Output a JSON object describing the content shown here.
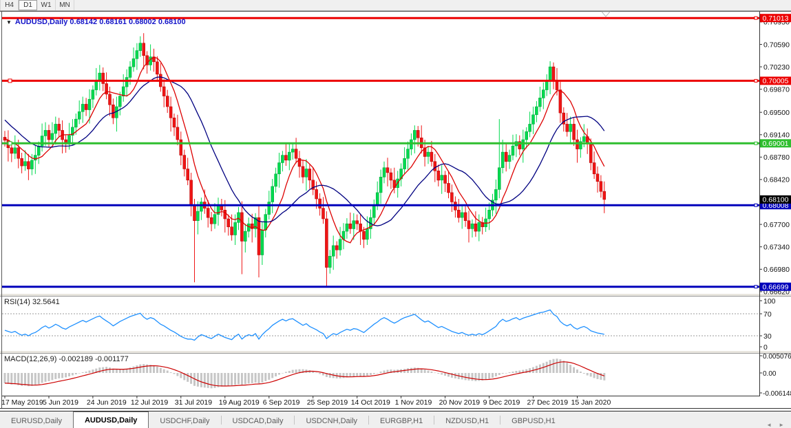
{
  "toolbar": {
    "timeframes": [
      {
        "label": "H4",
        "active": false
      },
      {
        "label": "D1",
        "active": true
      },
      {
        "label": "W1",
        "active": false
      },
      {
        "label": "MN",
        "active": false
      }
    ]
  },
  "icons": {
    "dropdown": "▼",
    "tab_prev": "◄",
    "tab_next": "►"
  },
  "chart": {
    "title_symbol": "AUDUSD,Daily",
    "ohlc_text": "0.68142 0.68161 0.68002 0.68100",
    "axis_ticks": [
      "0.70950",
      "0.70590",
      "0.70230",
      "0.69870",
      "0.69500",
      "0.69140",
      "0.68780",
      "0.68420",
      "0.67700",
      "0.67340",
      "0.66980",
      "0.66620"
    ],
    "hlines": [
      {
        "value": 0.71013,
        "label": "0.71013",
        "color": "#EC0000",
        "badge": "#EC0000",
        "handle": false
      },
      {
        "value": 0.70005,
        "label": "0.70005",
        "color": "#EC0000",
        "badge": "#EC0000",
        "handle": true
      },
      {
        "value": 0.69001,
        "label": "0.69001",
        "color": "#2FBE2F",
        "badge": "#2FBE2F",
        "handle": true
      },
      {
        "value": 0.68008,
        "label": "0.68008",
        "color": "#0000BB",
        "badge": "#0000BB",
        "handle": false
      },
      {
        "value": 0.66699,
        "label": "0.66699",
        "color": "#0000BB",
        "badge": "#0000BB",
        "handle": false
      }
    ],
    "current_price": {
      "value": 0.681,
      "label": "0.68100",
      "badge": "#000000"
    },
    "colors": {
      "bull": "#00D94F",
      "bull_edge": "#00A33A",
      "bear": "#EF1515",
      "bear_edge": "#B20000",
      "ma_fast": "#DD0000",
      "ma_slow": "#000080",
      "rsi": "#1E90FF",
      "macd_hist": "#C6C6C6",
      "macd_signal": "#CC0000"
    }
  },
  "chart_data": {
    "type": "candlestick",
    "title": "AUDUSD,Daily",
    "x_labels": [
      "17 May 2019",
      "5 Jun 2019",
      "24 Jun 2019",
      "12 Jul 2019",
      "31 Jul 2019",
      "19 Aug 2019",
      "6 Sep 2019",
      "25 Sep 2019",
      "14 Oct 2019",
      "1 Nov 2019",
      "20 Nov 2019",
      "9 Dec 2019",
      "27 Dec 2019",
      "15 Jan 2020"
    ],
    "bars_per_label": 13,
    "open_first": 0.691,
    "open_rule": "previous_close",
    "pre_closes": [
      0.7005,
      0.6998,
      0.699,
      0.6982,
      0.6975,
      0.6968,
      0.696,
      0.6952,
      0.6945,
      0.6938,
      0.6932,
      0.6926,
      0.6921,
      0.6916,
      0.6912,
      0.6909,
      0.6907,
      0.6906,
      0.6905,
      0.6905
    ],
    "closes": [
      0.6905,
      0.6893,
      0.6884,
      0.6893,
      0.6876,
      0.6864,
      0.6871,
      0.6859,
      0.6873,
      0.6881,
      0.6896,
      0.6912,
      0.6921,
      0.6906,
      0.6916,
      0.6931,
      0.6921,
      0.6906,
      0.6899,
      0.6913,
      0.6926,
      0.6939,
      0.6951,
      0.6963,
      0.6954,
      0.6971,
      0.6986,
      0.7001,
      0.7013,
      0.6996,
      0.6979,
      0.6962,
      0.6941,
      0.6959,
      0.6976,
      0.6991,
      0.7006,
      0.7023,
      0.7036,
      0.7049,
      0.7061,
      0.7041,
      0.7026,
      0.7039,
      0.7031,
      0.7011,
      0.6991,
      0.6976,
      0.6959,
      0.6941,
      0.6926,
      0.6906,
      0.6881,
      0.6859,
      0.6841,
      0.6801,
      0.6776,
      0.6791,
      0.6806,
      0.6796,
      0.6781,
      0.6771,
      0.6786,
      0.6801,
      0.6793,
      0.6779,
      0.6766,
      0.6753,
      0.6773,
      0.6789,
      0.6743,
      0.6759,
      0.6771,
      0.6763,
      0.6781,
      0.6721,
      0.6761,
      0.6786,
      0.6806,
      0.6831,
      0.6851,
      0.6869,
      0.6881,
      0.6873,
      0.6886,
      0.6891,
      0.6876,
      0.6863,
      0.6846,
      0.6859,
      0.6841,
      0.6826,
      0.6811,
      0.6796,
      0.6779,
      0.6701,
      0.6719,
      0.6736,
      0.6729,
      0.6746,
      0.6759,
      0.6771,
      0.6763,
      0.6776,
      0.6771,
      0.6759,
      0.6746,
      0.6763,
      0.6781,
      0.6801,
      0.6821,
      0.6846,
      0.6861,
      0.6853,
      0.6841,
      0.6829,
      0.6843,
      0.6859,
      0.6876,
      0.6891,
      0.6906,
      0.6921,
      0.6909,
      0.6893,
      0.6879,
      0.6886,
      0.6871,
      0.6856,
      0.6841,
      0.6849,
      0.6836,
      0.6821,
      0.6806,
      0.6793,
      0.6781,
      0.6789,
      0.6776,
      0.6763,
      0.6771,
      0.6759,
      0.6773,
      0.6766,
      0.6779,
      0.6793,
      0.6809,
      0.6826,
      0.6861,
      0.6886,
      0.6871,
      0.6881,
      0.6896,
      0.6903,
      0.6891,
      0.6906,
      0.6919,
      0.6931,
      0.6946,
      0.6959,
      0.6973,
      0.6986,
      0.7001,
      0.7023,
      0.7001,
      0.6986,
      0.6949,
      0.6931,
      0.6919,
      0.6931,
      0.6906,
      0.6891,
      0.6903,
      0.6911,
      0.6899,
      0.6869,
      0.6851,
      0.6839,
      0.6823,
      0.681
    ],
    "special_wicks": {
      "40": {
        "high": 0.7072
      },
      "56": {
        "low": 0.6677
      },
      "70": {
        "low": 0.669
      },
      "75": {
        "low": 0.6685
      },
      "95": {
        "low": 0.667
      },
      "121": {
        "high": 0.6929
      },
      "146": {
        "high": 0.6939
      },
      "161": {
        "high": 0.7032
      }
    },
    "ma_fast_period": 8,
    "ma_slow_period": 20,
    "rsi": {
      "label": "RSI(14) 32.5641",
      "levels": [
        70,
        30
      ],
      "axis": [
        "100",
        "70",
        "30",
        "0"
      ],
      "values": [
        40,
        38,
        36,
        38,
        34,
        31,
        33,
        30,
        34,
        36,
        40,
        45,
        48,
        44,
        47,
        51,
        48,
        44,
        42,
        46,
        49,
        52,
        55,
        58,
        55,
        58,
        61,
        64,
        66,
        61,
        57,
        53,
        48,
        52,
        56,
        59,
        62,
        65,
        67,
        69,
        71,
        64,
        60,
        63,
        61,
        56,
        51,
        48,
        44,
        40,
        37,
        33,
        29,
        26,
        24,
        24,
        22,
        28,
        32,
        30,
        27,
        25,
        29,
        33,
        30,
        27,
        25,
        23,
        29,
        33,
        24,
        29,
        32,
        30,
        34,
        24,
        32,
        38,
        43,
        49,
        53,
        57,
        60,
        57,
        60,
        61,
        57,
        53,
        49,
        52,
        47,
        44,
        41,
        37,
        34,
        25,
        30,
        34,
        32,
        36,
        39,
        42,
        40,
        43,
        42,
        39,
        36,
        41,
        46,
        51,
        55,
        60,
        63,
        60,
        56,
        53,
        56,
        60,
        63,
        65,
        67,
        69,
        64,
        59,
        55,
        57,
        53,
        49,
        45,
        47,
        44,
        41,
        38,
        36,
        34,
        36,
        33,
        31,
        33,
        31,
        34,
        32,
        35,
        39,
        43,
        47,
        55,
        60,
        56,
        58,
        61,
        63,
        59,
        62,
        64,
        66,
        68,
        70,
        72,
        73,
        75,
        77,
        69,
        65,
        56,
        51,
        48,
        51,
        45,
        42,
        45,
        47,
        44,
        39,
        37,
        35,
        34,
        32.6
      ]
    },
    "macd": {
      "label": "MACD(12,26,9) -0.002189 -0.001177",
      "axis": [
        "0.005076",
        "0.00",
        "-0.006148"
      ],
      "hist_scale": 0.0001,
      "hist": [
        -30,
        -32,
        -34,
        -33,
        -36,
        -38,
        -37,
        -39,
        -38,
        -36,
        -33,
        -29,
        -26,
        -24,
        -21,
        -18,
        -16,
        -15,
        -13,
        -10,
        -7,
        -4,
        -1,
        2,
        4,
        7,
        10,
        13,
        16,
        17,
        18,
        16,
        13,
        11,
        10,
        11,
        13,
        16,
        19,
        22,
        25,
        26,
        25,
        24,
        22,
        19,
        15,
        11,
        7,
        2,
        -3,
        -9,
        -15,
        -21,
        -26,
        -32,
        -38,
        -40,
        -42,
        -43,
        -44,
        -45,
        -44,
        -42,
        -40,
        -39,
        -38,
        -37,
        -35,
        -33,
        -35,
        -33,
        -31,
        -30,
        -28,
        -31,
        -28,
        -24,
        -20,
        -15,
        -10,
        -5,
        0,
        3,
        6,
        9,
        10,
        11,
        11,
        10,
        8,
        5,
        1,
        -3,
        -7,
        -12,
        -14,
        -15,
        -16,
        -16,
        -15,
        -13,
        -12,
        -10,
        -9,
        -9,
        -10,
        -8,
        -6,
        -3,
        0,
        4,
        7,
        9,
        10,
        9,
        10,
        11,
        12,
        14,
        15,
        16,
        15,
        13,
        10,
        7,
        4,
        1,
        -2,
        -5,
        -8,
        -11,
        -14,
        -16,
        -18,
        -19,
        -21,
        -22,
        -23,
        -24,
        -23,
        -22,
        -20,
        -17,
        -14,
        -10,
        -6,
        -2,
        0,
        2,
        4,
        6,
        7,
        9,
        11,
        14,
        17,
        21,
        25,
        29,
        33,
        38,
        41,
        42,
        40,
        36,
        30,
        24,
        17,
        10,
        4,
        -2,
        -7,
        -11,
        -15,
        -18,
        -20,
        -21.89
      ]
    }
  },
  "tabs": {
    "items": [
      {
        "label": "EURUSD,Daily",
        "active": false
      },
      {
        "label": "AUDUSD,Daily",
        "active": true
      },
      {
        "label": "USDCHF,Daily",
        "active": false
      },
      {
        "label": "USDCAD,Daily",
        "active": false
      },
      {
        "label": "USDCNH,Daily",
        "active": false
      },
      {
        "label": "EURGBP,H1",
        "active": false
      },
      {
        "label": "NZDUSD,H1",
        "active": false
      },
      {
        "label": "GBPUSD,H1",
        "active": false
      }
    ]
  }
}
